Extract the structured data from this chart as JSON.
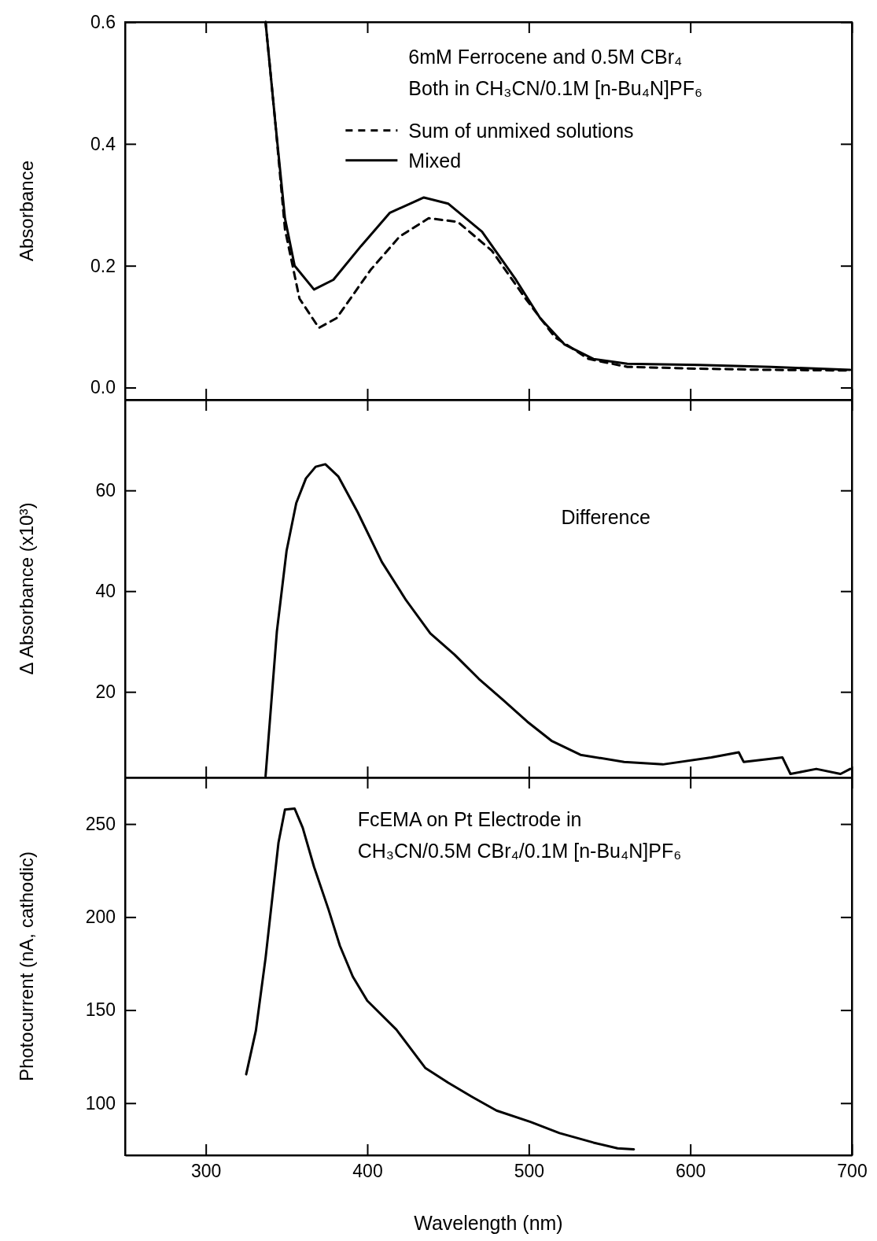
{
  "chart_data": [
    {
      "type": "line",
      "ylabel": "Absorbance",
      "xlim": [
        250,
        700
      ],
      "xticks": [
        300,
        400,
        500,
        600,
        700
      ],
      "ylim": [
        -0.02,
        0.6
      ],
      "yticks": [
        {
          "value": 0,
          "label": "0.0"
        },
        0.2,
        0.4,
        {
          "value": 0.6,
          "label": "0.6"
        }
      ],
      "tick_labels": "y",
      "legend": "top right",
      "grid": false,
      "annotations": [
        "6mM Ferrocene and 0.5M CBr₄",
        "Both in CH₃CN/0.1M [n-Bu₄N]PF₆"
      ],
      "series": [
        {
          "name": "Sum of unmixed solutions",
          "color": "#000000",
          "line_style": "dashed",
          "x": [
            337,
            343,
            349,
            358,
            370,
            381,
            402,
            420,
            438,
            456,
            477,
            498,
            516,
            537,
            561,
            605,
            650,
            699
          ],
          "values": [
            0.6,
            0.436,
            0.26,
            0.146,
            0.098,
            0.114,
            0.193,
            0.248,
            0.278,
            0.272,
            0.225,
            0.146,
            0.083,
            0.047,
            0.034,
            0.031,
            0.029,
            0.028
          ]
        },
        {
          "name": "Mixed",
          "color": "#000000",
          "line_style": "solid",
          "x": [
            337,
            343,
            349,
            355,
            367,
            379,
            396,
            414,
            435,
            450,
            471,
            492,
            507,
            522,
            540,
            561,
            605,
            650,
            699
          ],
          "values": [
            0.6,
            0.436,
            0.278,
            0.2,
            0.161,
            0.177,
            0.232,
            0.287,
            0.312,
            0.302,
            0.256,
            0.177,
            0.114,
            0.071,
            0.047,
            0.039,
            0.037,
            0.034,
            0.029
          ]
        }
      ]
    },
    {
      "type": "line",
      "ylabel": "Δ Absorbance (x10³)",
      "xlim": [
        250,
        700
      ],
      "xticks": [
        300,
        400,
        500,
        600,
        700
      ],
      "ylim": [
        3,
        78
      ],
      "yticks": [
        20,
        40,
        60
      ],
      "tick_labels": "y",
      "grid": false,
      "annotations": [
        "Difference"
      ],
      "series": [
        {
          "color": "#000000",
          "line_style": "solid",
          "x": [
            337,
            344,
            350,
            356,
            362,
            368,
            374,
            382,
            394,
            409,
            424,
            439,
            454,
            469,
            484,
            499,
            514,
            532,
            559,
            583,
            613,
            630,
            633,
            657,
            662,
            678,
            693,
            699
          ],
          "values": [
            3.3,
            32,
            48,
            57.5,
            62.4,
            64.7,
            65.2,
            62.8,
            55.7,
            45.8,
            38.2,
            31.6,
            27.4,
            22.6,
            18.4,
            14.1,
            10.3,
            7.5,
            6.1,
            5.6,
            7.0,
            8,
            6.1,
            7,
            3.7,
            4.7,
            3.7,
            4.7
          ]
        }
      ]
    },
    {
      "type": "line",
      "ylabel": "Photocurrent (nA, cathodic)",
      "xlabel": "Wavelength (nm)",
      "xlim": [
        250,
        700
      ],
      "xticks": [
        300,
        400,
        500,
        600,
        700
      ],
      "ylim": [
        72,
        275
      ],
      "yticks": [
        100,
        150,
        200,
        250
      ],
      "grid": false,
      "annotations": [
        "FcEMA on Pt Electrode in",
        "CH₃CN/0.5M CBr₄/0.1M [n-Bu₄N]PF₆"
      ],
      "series": [
        {
          "color": "#000000",
          "line_style": "solid",
          "x": [
            325,
            331,
            337,
            345,
            349,
            355,
            360,
            367,
            376,
            383,
            391,
            400,
            418,
            436,
            450,
            465,
            480,
            501,
            519,
            540,
            555,
            565
          ],
          "values": [
            115.5,
            139,
            178,
            240,
            257.8,
            258.3,
            248,
            227,
            204,
            184.6,
            168,
            155,
            139.5,
            118.8,
            111,
            103.3,
            96,
            89.9,
            83.9,
            78.8,
            75.7,
            75.2
          ]
        }
      ]
    }
  ]
}
